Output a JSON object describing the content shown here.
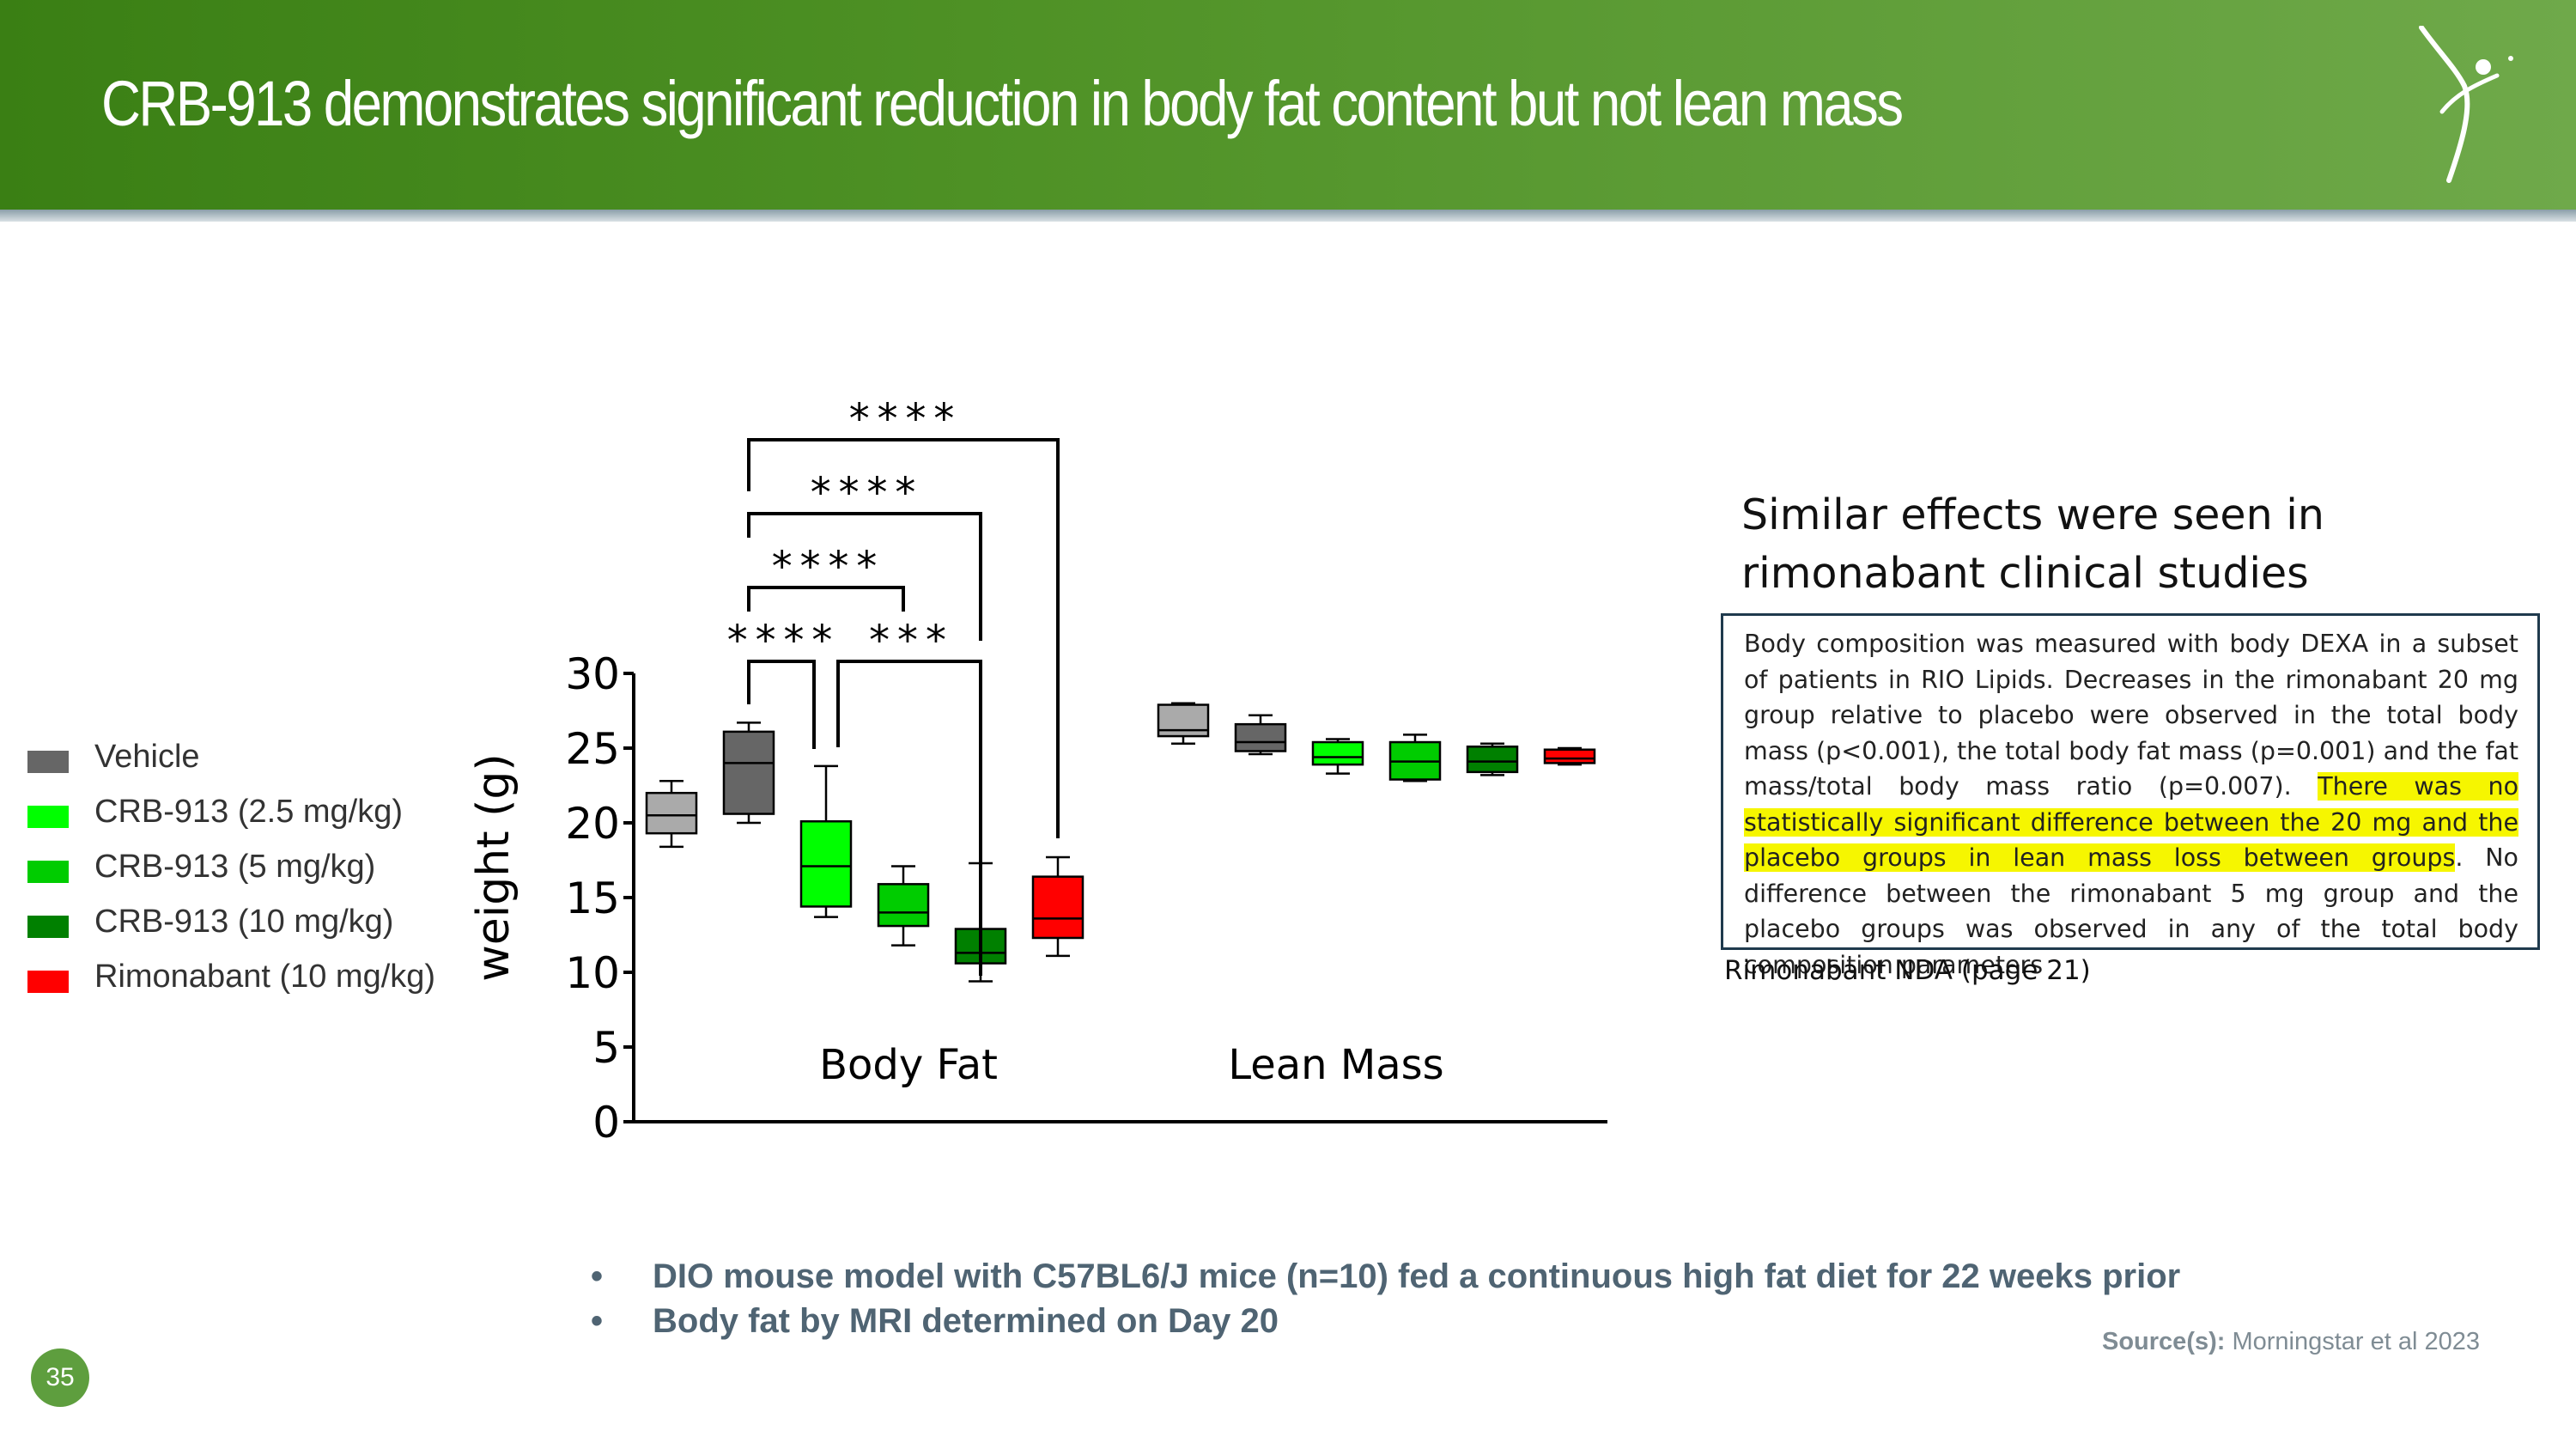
{
  "slide": {
    "title": "CRB-913 demonstrates significant reduction in body fat content but not lean mass",
    "page_number": "35",
    "logo_icon": "figure-logo-icon"
  },
  "legend": [
    {
      "label": "Vehicle",
      "color": "#666666"
    },
    {
      "label": "CRB-913 (2.5 mg/kg)",
      "color": "#00ff00"
    },
    {
      "label": "CRB-913 (5 mg/kg)",
      "color": "#00cc00"
    },
    {
      "label": "CRB-913 (10 mg/kg)",
      "color": "#008000"
    },
    {
      "label": "Rimonabant (10 mg/kg)",
      "color": "#ff0000"
    }
  ],
  "chart_data": {
    "type": "box",
    "ylabel": "weight (g)",
    "ylim": [
      0,
      30
    ],
    "yticks": [
      0,
      5,
      10,
      15,
      20,
      25,
      30
    ],
    "categories": [
      "Body Fat",
      "Lean Mass"
    ],
    "series": [
      {
        "name": "Vehicle",
        "color": "#aaaaaa",
        "box": [
          {
            "min": 18.4,
            "q1": 19.3,
            "median": 20.5,
            "q3": 22.0,
            "max": 22.8
          },
          {
            "min": 25.3,
            "q1": 25.8,
            "median": 26.2,
            "q3": 27.9,
            "max": 28.0
          }
        ]
      },
      {
        "name": "Vehicle (dark)",
        "color": "#666666",
        "box": [
          {
            "min": 20.0,
            "q1": 20.6,
            "median": 24.0,
            "q3": 26.1,
            "max": 26.7
          },
          {
            "min": 24.6,
            "q1": 24.8,
            "median": 25.4,
            "q3": 26.6,
            "max": 27.2
          }
        ]
      },
      {
        "name": "CRB-913 (2.5 mg/kg)",
        "color": "#00ff00",
        "box": [
          {
            "min": 13.7,
            "q1": 14.4,
            "median": 17.1,
            "q3": 20.1,
            "max": 23.8
          },
          {
            "min": 23.3,
            "q1": 23.9,
            "median": 24.4,
            "q3": 25.4,
            "max": 25.6
          }
        ]
      },
      {
        "name": "CRB-913 (5 mg/kg)",
        "color": "#00cc00",
        "box": [
          {
            "min": 11.8,
            "q1": 13.1,
            "median": 14.0,
            "q3": 15.9,
            "max": 17.1
          },
          {
            "min": 22.8,
            "q1": 22.9,
            "median": 24.1,
            "q3": 25.4,
            "max": 25.9
          }
        ]
      },
      {
        "name": "CRB-913 (10 mg/kg)",
        "color": "#008000",
        "box": [
          {
            "min": 9.4,
            "q1": 10.6,
            "median": 11.3,
            "q3": 12.9,
            "max": 17.3
          },
          {
            "min": 23.2,
            "q1": 23.4,
            "median": 24.1,
            "q3": 25.1,
            "max": 25.3
          }
        ]
      },
      {
        "name": "Rimonabant (10 mg/kg)",
        "color": "#ff0000",
        "box": [
          {
            "min": 11.1,
            "q1": 12.3,
            "median": 13.6,
            "q3": 16.4,
            "max": 17.7
          },
          {
            "min": 23.9,
            "q1": 24.0,
            "median": 24.3,
            "q3": 24.9,
            "max": 25.0
          }
        ]
      }
    ],
    "significance": [
      {
        "from": "Vehicle (dark)",
        "to": "CRB-913 (2.5 mg/kg)",
        "label": "****"
      },
      {
        "from": "Vehicle (dark)",
        "to": "CRB-913 (5 mg/kg)",
        "label": "****"
      },
      {
        "from": "Vehicle (dark)",
        "to": "CRB-913 (10 mg/kg)",
        "label": "****"
      },
      {
        "from": "Vehicle (dark)",
        "to": "Rimonabant (10 mg/kg)",
        "label": "****"
      },
      {
        "from": "CRB-913 (2.5 mg/kg)",
        "to": "CRB-913 (10 mg/kg)",
        "label": "***"
      }
    ]
  },
  "side_panel": {
    "title": "Similar effects were seen in rimonabant clinical studies",
    "quote_part1": "Body composition was measured with body DEXA in a subset of patients in RIO Lipids. Decreases in the rimonabant 20 mg group relative to placebo were observed in the total body mass (p<0.001), the total body fat mass (p=0.001) and the fat mass/total body mass ratio (p=0.007). ",
    "quote_highlight": "There was no statistically significant difference between the 20 mg and the placebo groups in lean mass loss between groups",
    "quote_part2": ". No difference between the rimonabant 5 mg group and the placebo groups was observed in any of the total body composition parameters",
    "quote_source": "Rimonabant NDA (page 21)"
  },
  "bullets": [
    "DIO mouse model with C57BL6/J mice (n=10) fed a continuous high fat diet for 22 weeks prior",
    "Body fat by MRI determined on Day 20"
  ],
  "bullet_symbol": "•",
  "source": {
    "label": "Source(s):",
    "text": " Morningstar et al 2023"
  }
}
